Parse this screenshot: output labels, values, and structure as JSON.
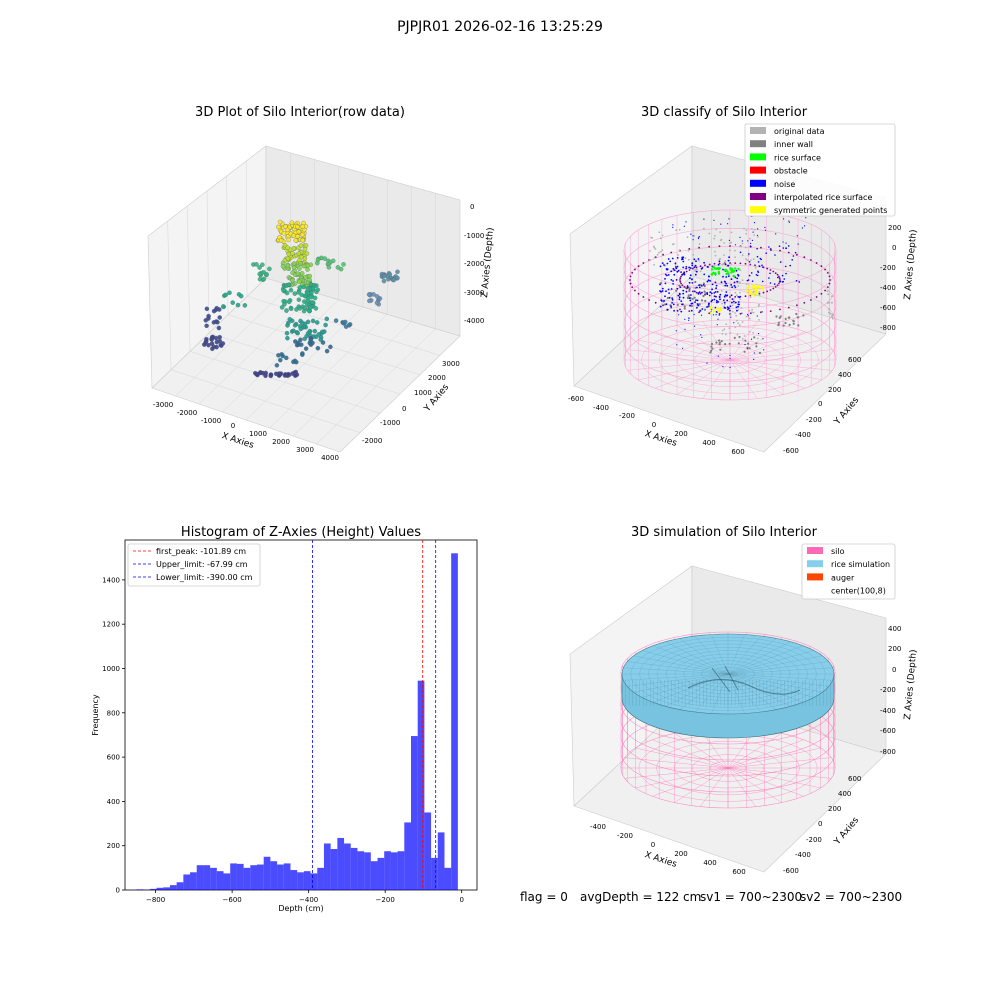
{
  "figure": {
    "suptitle": "PJPJR01 2026-02-16 13:25:29"
  },
  "panel_raw": {
    "title": "3D Plot of Silo Interior(row data)",
    "xlabel": "X Axies",
    "ylabel": "Y Axies",
    "zlabel": "Z Axies (Depth)",
    "xticks": [
      "-3000",
      "-2000",
      "-1000",
      "0",
      "1000",
      "2000",
      "3000",
      "4000"
    ],
    "yticks": [
      "-2000",
      "-1000",
      "0",
      "1000",
      "2000",
      "3000"
    ],
    "zticks": [
      "0",
      "-1000",
      "-2000",
      "-3000",
      "-4000"
    ]
  },
  "panel_classify": {
    "title": "3D classify of Silo Interior",
    "xlabel": "X Axies",
    "ylabel": "Y Axies",
    "zlabel": "Z Axies (Depth)",
    "xticks": [
      "-600",
      "-400",
      "-200",
      "0",
      "200",
      "400",
      "600"
    ],
    "yticks": [
      "-600",
      "-400",
      "-200",
      "0",
      "200",
      "400",
      "600"
    ],
    "zticks": [
      "200",
      "0",
      "-200",
      "-400",
      "-600",
      "-800"
    ],
    "legend": [
      {
        "label": "original data",
        "color": "#b3b3b3"
      },
      {
        "label": "inner wall",
        "color": "#808080"
      },
      {
        "label": "rice surface",
        "color": "#00ff00"
      },
      {
        "label": "obstacle",
        "color": "#ff0000"
      },
      {
        "label": "noise",
        "color": "#0000ff"
      },
      {
        "label": "interpolated rice surface",
        "color": "#800080"
      },
      {
        "label": "symmetric generated points",
        "color": "#ffff00"
      }
    ]
  },
  "panel_sim": {
    "title": "3D simulation of Silo Interior",
    "xlabel": "X Axies",
    "ylabel": "Y Axies",
    "zlabel": "Z Axies (Depth)",
    "xticks": [
      "-400",
      "-200",
      "0",
      "200",
      "400",
      "600"
    ],
    "yticks": [
      "-600",
      "-400",
      "-200",
      "0",
      "200",
      "400",
      "600"
    ],
    "zticks": [
      "400",
      "200",
      "0",
      "-200",
      "-400",
      "-600",
      "-800"
    ],
    "legend": [
      {
        "label": "silo",
        "color": "#ff69b4"
      },
      {
        "label": "rice simulation",
        "color": "#87ceeb"
      },
      {
        "label": "auger",
        "color": "#ff4500"
      },
      {
        "label": "center(100,8)",
        "color": "#ffffff"
      }
    ]
  },
  "status": {
    "flag": "flag = 0",
    "avg": "avgDepth = 122 cm",
    "sv1": "sv1 = 700~2300",
    "sv2": "sv2 = 700~2300"
  },
  "chart_data": [
    {
      "type": "bar",
      "title": "Histogram of Z-Axies (Height) Values",
      "xlabel": "Depth (cm)",
      "ylabel": "Frequency",
      "xlim": [
        -880,
        40
      ],
      "ylim": [
        0,
        1580
      ],
      "xticks": [
        -800,
        -600,
        -400,
        -200,
        0
      ],
      "yticks": [
        0,
        200,
        400,
        600,
        800,
        1000,
        1200,
        1400
      ],
      "bar_color": "#0000ff",
      "bin_width": 17.5,
      "bins_left": [
        -850,
        -832.5,
        -815,
        -797.5,
        -780,
        -762.5,
        -745,
        -727.5,
        -710,
        -692.5,
        -675,
        -657.5,
        -640,
        -622.5,
        -605,
        -587.5,
        -570,
        -552.5,
        -535,
        -517.5,
        -500,
        -482.5,
        -465,
        -447.5,
        -430,
        -412.5,
        -395,
        -377.5,
        -360,
        -342.5,
        -325,
        -307.5,
        -290,
        -272.5,
        -255,
        -237.5,
        -220,
        -202.5,
        -185,
        -167.5,
        -150,
        -132.5,
        -115,
        -97.5,
        -80,
        -62.5,
        -45,
        -27.5,
        -10
      ],
      "values": [
        3,
        2,
        5,
        10,
        12,
        22,
        35,
        70,
        80,
        112,
        112,
        100,
        85,
        75,
        120,
        118,
        100,
        112,
        115,
        150,
        130,
        115,
        120,
        90,
        80,
        85,
        75,
        100,
        210,
        185,
        235,
        210,
        190,
        175,
        170,
        130,
        145,
        175,
        170,
        175,
        305,
        695,
        945,
        350,
        145,
        260,
        100,
        1520,
        0
      ],
      "legend": [
        {
          "label": "first_peak: -101.89 cm",
          "value": -101.89,
          "color": "#ff0000"
        },
        {
          "label": "Upper_limit: -67.99 cm",
          "value": -67.99,
          "color": "#0000ff"
        },
        {
          "label": "Lower_limit: -390.00 cm",
          "value": -390.0,
          "color": "#0000ff"
        }
      ]
    }
  ]
}
